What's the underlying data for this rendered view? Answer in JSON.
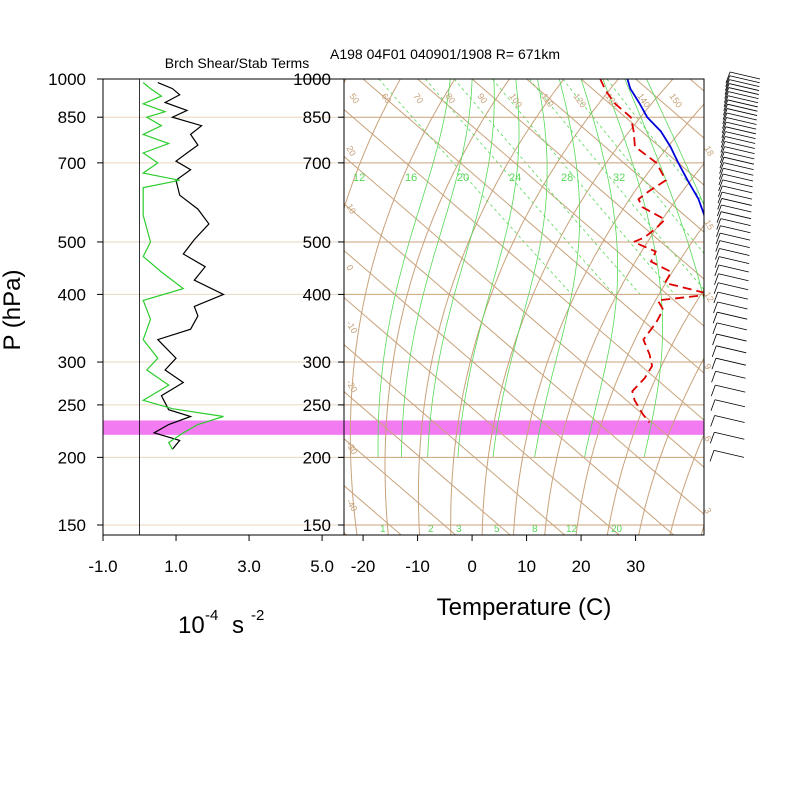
{
  "title": "A198 04F01 040901/1908 R= 671km",
  "chart_data": [
    {
      "type": "line",
      "title": "Brch Shear/Stab Terms",
      "ylabel": "P (hPa)",
      "xlabel_base": "10",
      "xlabel_exp": "-4",
      "xlabel_unit": "s",
      "xlabel_unit_exp": "-2",
      "xlim": [
        -1.0,
        5.6
      ],
      "ylim": [
        1000,
        150
      ],
      "y_scale": "log",
      "y_ticks": [
        150,
        200,
        250,
        300,
        400,
        500,
        700,
        850,
        1000
      ],
      "x_ticks": [
        "-1.0",
        "1.0",
        "3.0",
        "5.0"
      ],
      "x_tick_values": [
        -1.0,
        1.0,
        3.0,
        5.0
      ],
      "zero_line": 0.0,
      "series": [
        {
          "color": "#000000",
          "points": [
            [
              0.5,
              985
            ],
            [
              0.9,
              960
            ],
            [
              1.1,
              935
            ],
            [
              0.7,
              905
            ],
            [
              1.3,
              875
            ],
            [
              0.9,
              850
            ],
            [
              1.7,
              820
            ],
            [
              1.4,
              790
            ],
            [
              1.6,
              755
            ],
            [
              1.3,
              730
            ],
            [
              1.0,
              705
            ],
            [
              1.4,
              680
            ],
            [
              1.0,
              650
            ],
            [
              1.1,
              610
            ],
            [
              1.6,
              575
            ],
            [
              1.9,
              540
            ],
            [
              1.5,
              505
            ],
            [
              1.2,
              475
            ],
            [
              1.8,
              450
            ],
            [
              1.5,
              425
            ],
            [
              2.3,
              400
            ],
            [
              1.5,
              380
            ],
            [
              1.6,
              365
            ],
            [
              1.4,
              345
            ],
            [
              0.5,
              330
            ],
            [
              1.0,
              305
            ],
            [
              0.7,
              290
            ],
            [
              1.2,
              275
            ],
            [
              0.6,
              260
            ],
            [
              0.8,
              245
            ],
            [
              1.4,
              238
            ],
            [
              0.8,
              230
            ],
            [
              0.4,
              222
            ],
            [
              1.1,
              215
            ],
            [
              0.9,
              207
            ]
          ]
        },
        {
          "color": "#2ecc2e",
          "points": [
            [
              0.1,
              985
            ],
            [
              0.3,
              960
            ],
            [
              0.6,
              930
            ],
            [
              0.1,
              900
            ],
            [
              0.7,
              870
            ],
            [
              0.2,
              850
            ],
            [
              0.6,
              820
            ],
            [
              0.1,
              790
            ],
            [
              0.8,
              760
            ],
            [
              0.1,
              730
            ],
            [
              0.5,
              700
            ],
            [
              0.1,
              670
            ],
            [
              1.1,
              650
            ],
            [
              0.1,
              630
            ],
            [
              0.1,
              560
            ],
            [
              0.3,
              500
            ],
            [
              0.1,
              470
            ],
            [
              0.6,
              440
            ],
            [
              1.2,
              410
            ],
            [
              0.1,
              390
            ],
            [
              0.3,
              360
            ],
            [
              0.1,
              330
            ],
            [
              0.5,
              305
            ],
            [
              0.2,
              290
            ],
            [
              0.8,
              272
            ],
            [
              0.1,
              255
            ],
            [
              0.9,
              246
            ],
            [
              2.3,
              238
            ],
            [
              1.6,
              230
            ],
            [
              1.2,
              222
            ],
            [
              0.8,
              213
            ],
            [
              0.9,
              207
            ]
          ]
        }
      ]
    },
    {
      "type": "line",
      "subtype": "skew-T log-P",
      "xlabel": "Temperature (C)",
      "ylim": [
        1000,
        150
      ],
      "y_scale": "log",
      "y_ticks": [
        150,
        200,
        250,
        300,
        400,
        500,
        700,
        850,
        1000
      ],
      "x_ticks": [
        "-20",
        "-10",
        "0",
        "10",
        "20",
        "30"
      ],
      "x_tick_values": [
        -20,
        -10,
        0,
        10,
        20,
        30
      ],
      "xlim_at_1000hPa": [
        -23.5,
        40
      ],
      "highlight_band_hPa": [
        232,
        222
      ],
      "highlight_color": "#f27bf2",
      "dry_adiabat_labels": [
        "50",
        "60",
        "70",
        "80",
        "90",
        "100",
        "110",
        "120",
        "130",
        "140",
        "150"
      ],
      "moist_adiabat_labels": [
        "12",
        "16",
        "20",
        "24",
        "28",
        "32"
      ],
      "mixing_ratio_labels": [
        "1",
        "2",
        "3",
        "5",
        "8",
        "12",
        "20"
      ],
      "isotherm_side_labels": [
        "-40",
        "-30",
        "-20",
        "-10",
        "0",
        "10",
        "20",
        "30"
      ],
      "series": [
        {
          "name_hidden": "temperature",
          "color": "#0000dd",
          "style": "solid",
          "points": [
            [
              28.5,
              1000
            ],
            [
              27.0,
              960
            ],
            [
              25.5,
              900
            ],
            [
              24.0,
              850
            ],
            [
              23.5,
              800
            ],
            [
              22.0,
              750
            ],
            [
              20.0,
              700
            ],
            [
              18.0,
              650
            ],
            [
              16.0,
              600
            ],
            [
              13.0,
              550
            ],
            [
              10.0,
              500
            ],
            [
              7.5,
              450
            ],
            [
              4.0,
              400
            ],
            [
              1.0,
              370
            ],
            [
              -1.5,
              340
            ],
            [
              -4.0,
              320
            ],
            [
              -8.0,
              300
            ],
            [
              -12.0,
              285
            ],
            [
              -17.0,
              270
            ],
            [
              -20.5,
              250
            ],
            [
              -23.5,
              235
            ],
            [
              -27.5,
              225
            ],
            [
              -30.5,
              210
            ],
            [
              -33.0,
              200
            ]
          ]
        },
        {
          "name_hidden": "dewpoint",
          "color": "#dd0000",
          "style": "dashed",
          "points": [
            [
              23.5,
              1000
            ],
            [
              22.0,
              950
            ],
            [
              21.0,
              900
            ],
            [
              21.0,
              850
            ],
            [
              18.5,
              800
            ],
            [
              15.5,
              750
            ],
            [
              16.0,
              700
            ],
            [
              14.0,
              650
            ],
            [
              8.5,
              620
            ],
            [
              5.0,
              600
            ],
            [
              4.0,
              580
            ],
            [
              5.5,
              550
            ],
            [
              2.0,
              530
            ],
            [
              -2.0,
              510
            ],
            [
              -5.0,
              500
            ],
            [
              -3.0,
              480
            ],
            [
              -6.0,
              460
            ],
            [
              -4.5,
              440
            ],
            [
              -8.0,
              420
            ],
            [
              -2.0,
              400
            ],
            [
              -13.0,
              390
            ],
            [
              -14.0,
              375
            ],
            [
              -18.0,
              355
            ],
            [
              -24.0,
              330
            ],
            [
              -26.0,
              310
            ],
            [
              -28.0,
              295
            ],
            [
              -32.0,
              280
            ],
            [
              -37.0,
              265
            ],
            [
              -38.5,
              255
            ],
            [
              -40.0,
              240
            ],
            [
              -40.5,
              232
            ]
          ]
        }
      ]
    }
  ],
  "wind_barbs": {
    "color": "#000000",
    "side_labels": [
      "18",
      "15",
      "12",
      "9",
      "6",
      "3"
    ]
  }
}
